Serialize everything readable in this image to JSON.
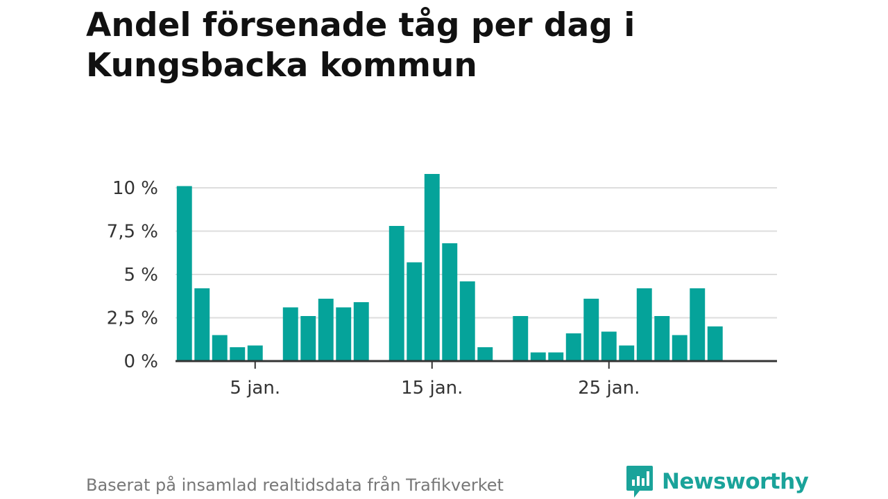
{
  "title": "Andel försenade tåg per dag i Kungsbacka kommun",
  "source": "Baserat på insamlad realtidsdata från Trafikverket",
  "logo": {
    "text": "Newsworthy",
    "icon": "newsworthy-logo-icon"
  },
  "colors": {
    "bar": "#05a39a",
    "grid": "#dddddd",
    "axis": "#333333",
    "text": "#333333"
  },
  "chart_data": {
    "type": "bar",
    "x": [
      1,
      2,
      3,
      4,
      5,
      6,
      7,
      8,
      9,
      10,
      11,
      12,
      13,
      14,
      15,
      16,
      17,
      18,
      19,
      20,
      21,
      22,
      23,
      24,
      25,
      26,
      27,
      28,
      29,
      30,
      31,
      32,
      33
    ],
    "values": [
      10.1,
      4.2,
      1.5,
      0.8,
      0.9,
      0,
      3.1,
      2.6,
      3.6,
      3.1,
      3.4,
      0,
      7.8,
      5.7,
      10.8,
      6.8,
      4.6,
      0.8,
      0,
      2.6,
      0.5,
      0.5,
      1.6,
      3.6,
      1.7,
      0.9,
      4.2,
      2.6,
      1.5,
      4.2,
      2.0,
      0,
      0
    ],
    "yticks": [
      0,
      2.5,
      5,
      7.5,
      10
    ],
    "ytick_labels": [
      "0 %",
      "2,5 %",
      "5 %",
      "7,5 %",
      "10 %"
    ],
    "xticks": [
      5,
      15,
      25
    ],
    "xtick_labels": [
      "5 jan.",
      "15 jan.",
      "25 jan."
    ],
    "ylim": [
      0,
      11
    ],
    "xlim": [
      0.5,
      34.5
    ],
    "grid": true
  }
}
